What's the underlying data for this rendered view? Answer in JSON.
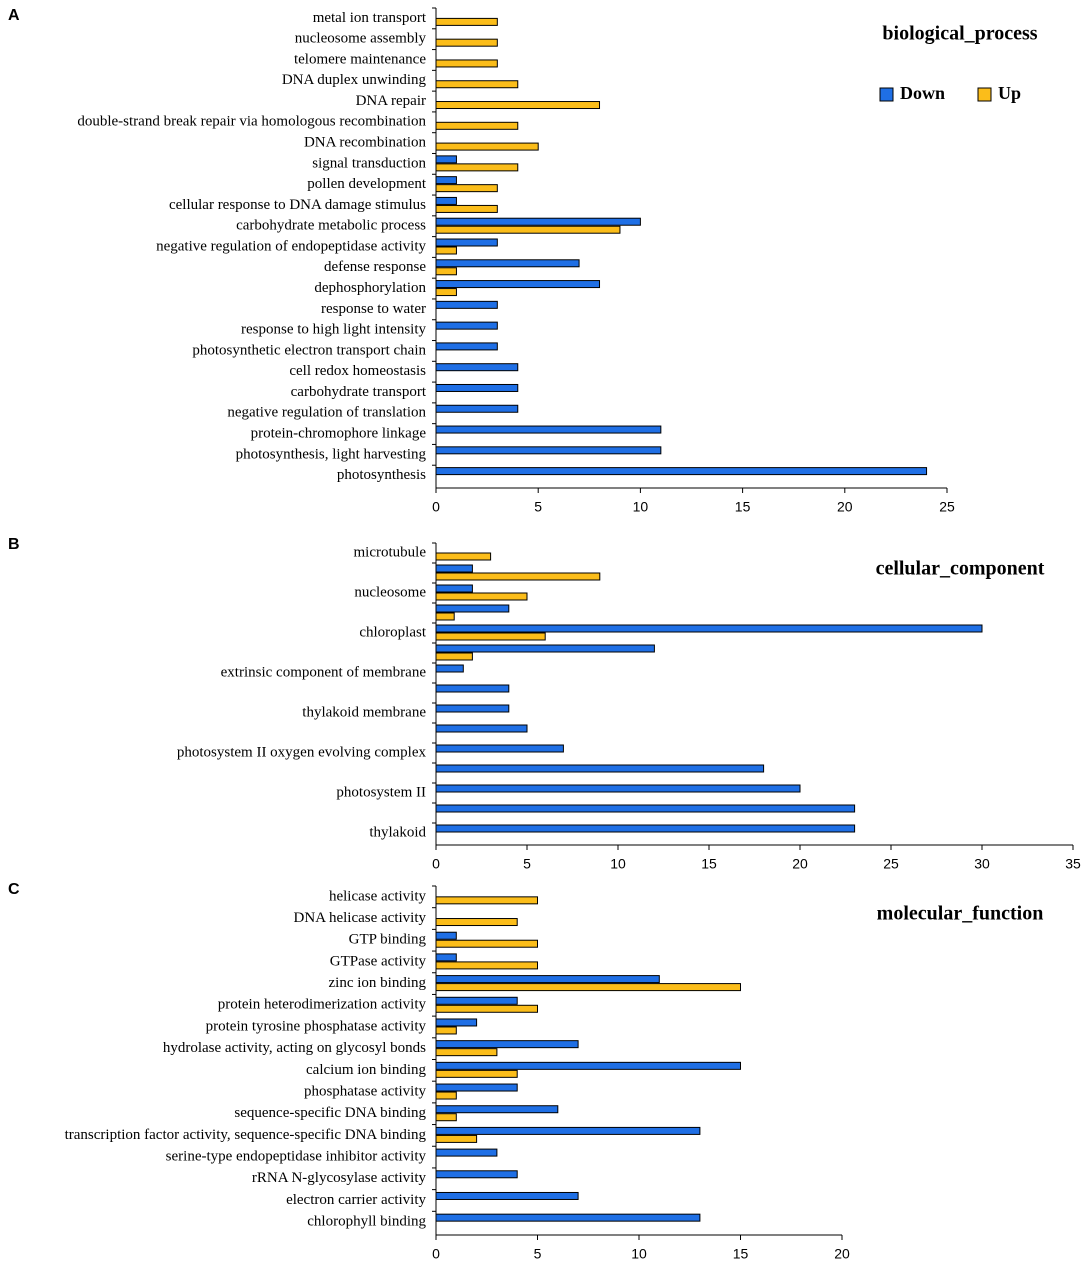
{
  "chart_data": [
    {
      "type": "barh",
      "panel_label": "A",
      "title": "biological_process",
      "legend": true,
      "categories": [
        "metal ion transport",
        "nucleosome assembly",
        "telomere maintenance",
        "DNA duplex unwinding",
        "DNA repair",
        "double-strand break repair via homologous recombination",
        "DNA recombination",
        "signal transduction",
        "pollen development",
        "cellular response to DNA damage stimulus",
        "carbohydrate metabolic process",
        "negative regulation of endopeptidase activity",
        "defense response",
        "dephosphorylation",
        "response to water",
        "response to high light intensity",
        "photosynthetic electron transport chain",
        "cell redox homeostasis",
        "carbohydrate transport",
        "negative regulation of translation",
        "protein-chromophore linkage",
        "photosynthesis, light harvesting",
        "photosynthesis"
      ],
      "series": [
        {
          "name": "Down",
          "color": "#1f6fe5",
          "values": [
            0,
            0,
            0,
            0,
            0,
            0,
            0,
            1,
            1,
            1,
            10,
            3,
            7,
            8,
            3,
            3,
            3,
            4,
            4,
            4,
            11,
            11,
            24
          ]
        },
        {
          "name": "Up",
          "color": "#fbbd1a",
          "values": [
            3,
            3,
            3,
            4,
            8,
            4,
            5,
            4,
            3,
            3,
            9,
            1,
            1,
            1,
            0,
            0,
            0,
            0,
            0,
            0,
            0,
            0,
            0
          ]
        }
      ],
      "xlim": [
        0,
        25
      ],
      "xticks": [
        0,
        5,
        10,
        15,
        20,
        25
      ]
    },
    {
      "type": "barh",
      "panel_label": "B",
      "title": "cellular_component",
      "legend": false,
      "categories": [
        "microtubule",
        null,
        "nucleosome",
        null,
        "chloroplast",
        null,
        "extrinsic component of membrane",
        null,
        "thylakoid membrane",
        null,
        "photosystem II oxygen evolving complex",
        null,
        "photosystem II",
        null,
        "thylakoid"
      ],
      "series": [
        {
          "name": "Down",
          "color": "#1f6fe5",
          "values": [
            0,
            2,
            2,
            4,
            30,
            12,
            1.5,
            4,
            4,
            5,
            7,
            18,
            20,
            23,
            23
          ]
        },
        {
          "name": "Up",
          "color": "#fbbd1a",
          "values": [
            3,
            9,
            5,
            1,
            6,
            2,
            0,
            0,
            0,
            0,
            0,
            0,
            0,
            0,
            0
          ]
        }
      ],
      "xlim": [
        0,
        35
      ],
      "xticks": [
        0,
        5,
        10,
        15,
        20,
        25,
        30,
        35
      ]
    },
    {
      "type": "barh",
      "panel_label": "C",
      "title": "molecular_function",
      "legend": false,
      "categories": [
        "helicase activity",
        "DNA helicase activity",
        "GTP binding",
        "GTPase activity",
        "zinc ion binding",
        "protein heterodimerization activity",
        "protein tyrosine phosphatase activity",
        "hydrolase activity, acting on glycosyl bonds",
        "calcium ion binding",
        "phosphatase activity",
        "sequence-specific DNA binding",
        "transcription factor activity, sequence-specific DNA binding",
        "serine-type endopeptidase inhibitor activity",
        "rRNA N-glycosylase activity",
        "electron carrier activity",
        "chlorophyll binding"
      ],
      "series": [
        {
          "name": "Down",
          "color": "#1f6fe5",
          "values": [
            0,
            0,
            1,
            1,
            11,
            4,
            2,
            7,
            15,
            4,
            6,
            13,
            3,
            4,
            7,
            13
          ]
        },
        {
          "name": "Up",
          "color": "#fbbd1a",
          "values": [
            5,
            4,
            5,
            5,
            15,
            5,
            1,
            3,
            4,
            1,
            1,
            2,
            0,
            0,
            0,
            0
          ]
        }
      ],
      "xlim": [
        0,
        20
      ],
      "xticks": [
        0,
        5,
        10,
        15,
        20
      ]
    }
  ]
}
